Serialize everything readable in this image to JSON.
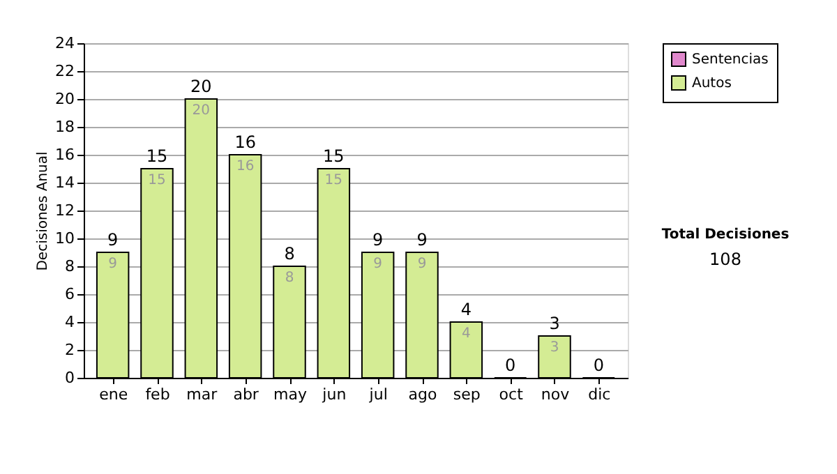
{
  "chart_data": {
    "type": "bar",
    "stacked": true,
    "ylabel": "Decisiones Anual",
    "categories": [
      "ene",
      "feb",
      "mar",
      "abr",
      "may",
      "jun",
      "jul",
      "ago",
      "sep",
      "oct",
      "nov",
      "dic"
    ],
    "series": [
      {
        "name": "Sentencias",
        "color": "#e088cc",
        "values": [
          0,
          0,
          0,
          0,
          0,
          0,
          0,
          0,
          0,
          0,
          0,
          0
        ]
      },
      {
        "name": "Autos",
        "color": "#d4ec94",
        "values": [
          9,
          15,
          20,
          16,
          8,
          15,
          9,
          9,
          4,
          0,
          3,
          0
        ],
        "value_labels": [
          "9",
          "15",
          "20",
          "16",
          "8",
          "15",
          "9",
          "9",
          "4",
          null,
          "3",
          null
        ]
      }
    ],
    "totals": [
      "9",
      "15",
      "20",
      "16",
      "8",
      "15",
      "9",
      "9",
      "4",
      "0",
      "3",
      "0"
    ],
    "ylim": [
      0,
      24
    ],
    "yticks": [
      0,
      2,
      4,
      6,
      8,
      10,
      12,
      14,
      16,
      18,
      20,
      22,
      24
    ],
    "grid": "y",
    "legend": "right",
    "annotations": [
      "Total Decisiones",
      "108"
    ]
  }
}
